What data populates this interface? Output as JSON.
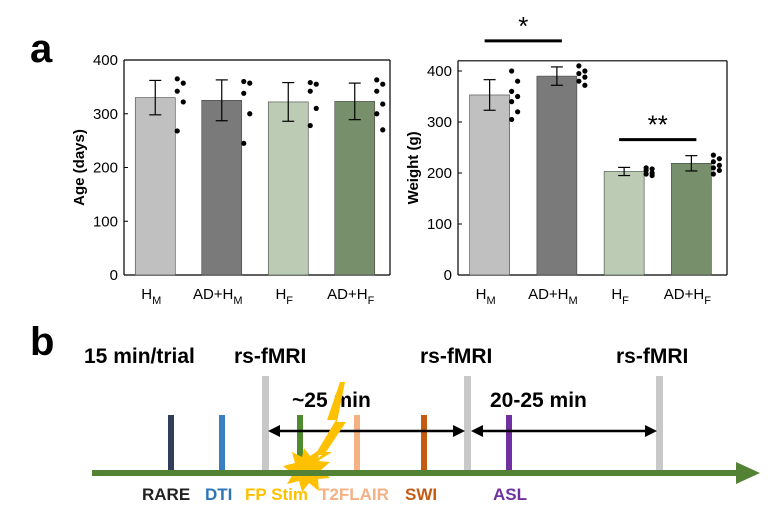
{
  "panel_a_label": "a",
  "panel_b_label": "b",
  "chart_data": [
    {
      "type": "bar",
      "title": "",
      "xlabel": "",
      "ylabel": "Age (days)",
      "ylim": [
        0,
        400
      ],
      "yticks": [
        0,
        100,
        200,
        300,
        400
      ],
      "categories": [
        {
          "base": "H",
          "sub": "M"
        },
        {
          "base": "AD+H",
          "sub": "M"
        },
        {
          "base": "H",
          "sub": "F"
        },
        {
          "base": "AD+H",
          "sub": "F"
        }
      ],
      "values": [
        330,
        325,
        322,
        323
      ],
      "errors": [
        32,
        38,
        36,
        34
      ],
      "bar_colors": [
        "#c0c0c0",
        "#7a7a7a",
        "#bccbb4",
        "#778f6b"
      ],
      "points": [
        [
          365,
          357,
          342,
          322,
          268
        ],
        [
          360,
          357,
          338,
          300,
          245
        ],
        [
          358,
          355,
          342,
          310,
          278
        ],
        [
          363,
          355,
          342,
          318,
          300,
          270
        ]
      ],
      "significance": []
    },
    {
      "type": "bar",
      "title": "",
      "xlabel": "",
      "ylabel": "Weight (g)",
      "ylim": [
        0,
        420
      ],
      "yticks": [
        0,
        100,
        200,
        300,
        400
      ],
      "categories": [
        {
          "base": "H",
          "sub": "M"
        },
        {
          "base": "AD+H",
          "sub": "M"
        },
        {
          "base": "H",
          "sub": "F"
        },
        {
          "base": "AD+H",
          "sub": "F"
        }
      ],
      "values": [
        353,
        390,
        203,
        219
      ],
      "errors": [
        30,
        18,
        8,
        15
      ],
      "bar_colors": [
        "#c0c0c0",
        "#7a7a7a",
        "#bccbb4",
        "#778f6b"
      ],
      "points": [
        [
          400,
          380,
          360,
          350,
          340,
          320,
          305
        ],
        [
          410,
          400,
          395,
          388,
          380,
          372
        ],
        [
          210,
          208,
          205,
          200,
          198,
          195
        ],
        [
          235,
          228,
          222,
          215,
          210,
          205,
          198
        ]
      ],
      "significance": [
        {
          "pair": [
            0,
            1
          ],
          "label": "*"
        },
        {
          "pair": [
            2,
            3
          ],
          "label": "**"
        }
      ]
    }
  ],
  "timeline": {
    "trial_label": "15 min/trial",
    "rs_fmri_label": "rs-fMRI",
    "interval_1": "~25 min",
    "interval_2": "20-25 min",
    "colors": {
      "axis": "#548235",
      "gray": "#c8c8c8",
      "rare": "#2f3f5a",
      "dti": "#3a7fc1",
      "stim": "#4f8a2e",
      "t2flair": "#f4b183",
      "swi": "#c55a11",
      "asl": "#7030a0",
      "fp_stim": "#ffc000"
    },
    "sequences": [
      {
        "key": "rare",
        "label": "RARE",
        "color": "#222222"
      },
      {
        "key": "dti",
        "label": "DTI",
        "color": "#2e75b6"
      },
      {
        "key": "fp_stim",
        "label": "FP Stim",
        "color": "#ffc000"
      },
      {
        "key": "t2flair",
        "label": "T2FLAIR",
        "color": "#f4b183"
      },
      {
        "key": "swi",
        "label": "SWI",
        "color": "#c55a11"
      },
      {
        "key": "asl",
        "label": "ASL",
        "color": "#7030a0"
      }
    ]
  }
}
